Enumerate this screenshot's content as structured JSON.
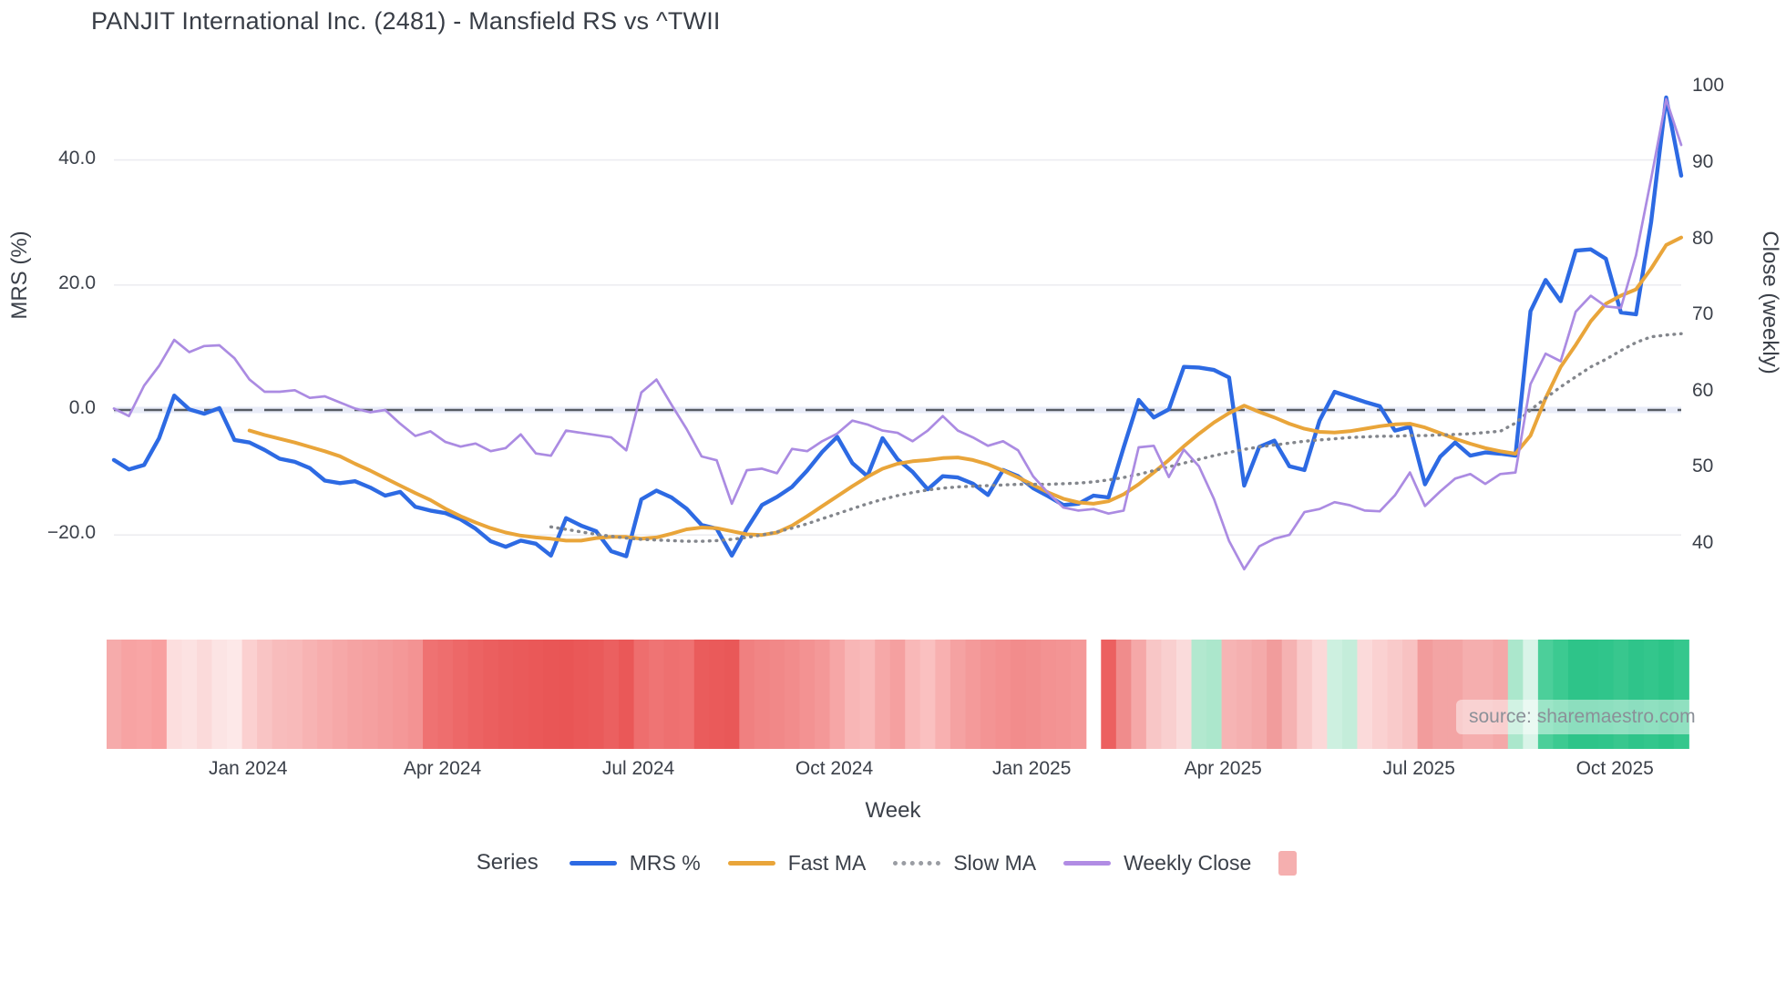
{
  "page": {
    "title": "PANJIT International Inc. (2481) - Mansfield RS vs ^TWII",
    "source_note": "source: sharemaestro.com"
  },
  "axes": {
    "x_title": "Week",
    "left_title": "MRS (%)",
    "right_title": "Close (weekly)",
    "left_ticks": [
      {
        "value": 40,
        "label": "40.0"
      },
      {
        "value": 20,
        "label": "20.0"
      },
      {
        "value": 0,
        "label": "0.0"
      },
      {
        "value": -20,
        "label": "−20.0"
      }
    ],
    "right_ticks": [
      {
        "value": 100,
        "label": "100"
      },
      {
        "value": 90,
        "label": "90"
      },
      {
        "value": 80,
        "label": "80"
      },
      {
        "value": 70,
        "label": "70"
      },
      {
        "value": 60,
        "label": "60"
      },
      {
        "value": 50,
        "label": "50"
      },
      {
        "value": 40,
        "label": "40"
      }
    ],
    "x_ticks": [
      {
        "week": 8.9,
        "label": "Jan 2024"
      },
      {
        "week": 21.8,
        "label": "Apr 2024"
      },
      {
        "week": 34.8,
        "label": "Jul 2024"
      },
      {
        "week": 47.8,
        "label": "Oct 2024"
      },
      {
        "week": 60.9,
        "label": "Jan 2025"
      },
      {
        "week": 73.6,
        "label": "Apr 2025"
      },
      {
        "week": 86.6,
        "label": "Jul 2025"
      },
      {
        "week": 99.6,
        "label": "Oct 2025"
      }
    ]
  },
  "legend": {
    "title": "Series",
    "items": [
      {
        "label": "MRS %",
        "color": "#2d6ae3",
        "swatch": "line"
      },
      {
        "label": "Fast MA",
        "color": "#e9a53a",
        "swatch": "line"
      },
      {
        "label": "Slow MA",
        "color": "#9a9da3",
        "swatch": "dotted"
      },
      {
        "label": "Weekly Close",
        "color": "#b18ce4",
        "swatch": "line"
      },
      {
        "label": "",
        "color": "#f5afaf",
        "swatch": "square"
      }
    ]
  },
  "chart_data": {
    "type": "line",
    "title": "PANJIT International Inc. (2481) - Mansfield RS vs ^TWII",
    "xlabel": "Week",
    "ylabel_left": "MRS (%)",
    "ylabel_right": "Close (weekly)",
    "x_unit": "weekly index, ~Nov 2023 to Nov 2025",
    "n_points": 105,
    "ylim_left": [
      -31,
      57
    ],
    "ylim_right": [
      32,
      104
    ],
    "grid": "horizontal, at left-axis ticks",
    "legend_position": "bottom",
    "zero_line": {
      "axis": "left",
      "value": 0,
      "style": "dashed"
    },
    "series": [
      {
        "name": "MRS %",
        "axis": "left",
        "color": "#2d6ae3",
        "style": "solid",
        "width": 4.4,
        "values": [
          -8.0,
          -9.5,
          -8.8,
          -4.5,
          2.3,
          0.1,
          -0.6,
          0.3,
          -4.8,
          -5.2,
          -6.4,
          -7.8,
          -8.3,
          -9.3,
          -11.3,
          -11.7,
          -11.4,
          -12.4,
          -13.7,
          -13.1,
          -15.5,
          -16.1,
          -16.5,
          -17.5,
          -19.0,
          -21.0,
          -21.9,
          -20.9,
          -21.4,
          -23.3,
          -17.3,
          -18.5,
          -19.4,
          -22.6,
          -23.4,
          -14.3,
          -12.9,
          -14.0,
          -15.8,
          -18.4,
          -19.0,
          -23.3,
          -19.0,
          -15.2,
          -13.9,
          -12.3,
          -9.7,
          -6.7,
          -4.3,
          -8.5,
          -10.6,
          -4.5,
          -7.9,
          -9.9,
          -12.7,
          -10.6,
          -10.8,
          -11.8,
          -13.6,
          -9.6,
          -10.6,
          -12.5,
          -13.8,
          -15.2,
          -15.0,
          -13.7,
          -14.0,
          -6.0,
          1.6,
          -1.2,
          0.1,
          6.9,
          6.8,
          6.4,
          5.2,
          -12.1,
          -5.9,
          -4.9,
          -9.0,
          -9.6,
          -1.7,
          2.9,
          2.1,
          1.3,
          0.6,
          -3.3,
          -2.7,
          -11.9,
          -7.5,
          -5.2,
          -7.3,
          -6.8,
          -7.0,
          -7.3,
          15.8,
          20.8,
          17.4,
          25.5,
          25.7,
          24.2,
          15.6,
          15.3,
          30.0,
          50.0,
          37.5
        ]
      },
      {
        "name": "Fast MA",
        "axis": "left",
        "color": "#e9a53a",
        "style": "solid",
        "width": 4,
        "values": [
          null,
          null,
          null,
          null,
          null,
          null,
          null,
          null,
          null,
          -3.3,
          -4.0,
          -4.6,
          -5.2,
          -5.9,
          -6.6,
          -7.4,
          -8.6,
          -9.7,
          -10.9,
          -12.1,
          -13.3,
          -14.4,
          -15.8,
          -17.0,
          -18.0,
          -18.9,
          -19.6,
          -20.1,
          -20.4,
          -20.6,
          -20.9,
          -20.9,
          -20.5,
          -20.3,
          -20.3,
          -20.6,
          -20.4,
          -19.8,
          -19.1,
          -18.8,
          -18.9,
          -19.4,
          -19.9,
          -20.0,
          -19.6,
          -18.5,
          -17.0,
          -15.4,
          -13.8,
          -12.2,
          -10.7,
          -9.4,
          -8.6,
          -8.2,
          -8.0,
          -7.7,
          -7.6,
          -8.0,
          -8.7,
          -9.7,
          -10.8,
          -12.0,
          -13.2,
          -14.2,
          -14.8,
          -15.0,
          -14.6,
          -13.5,
          -11.9,
          -10.0,
          -8.0,
          -5.8,
          -3.8,
          -2.0,
          -0.5,
          0.7,
          -0.3,
          -1.2,
          -2.2,
          -3.0,
          -3.5,
          -3.6,
          -3.4,
          -3.0,
          -2.6,
          -2.3,
          -2.2,
          -2.8,
          -3.7,
          -4.6,
          -5.4,
          -6.1,
          -6.6,
          -7.0,
          -4.1,
          1.9,
          6.9,
          10.4,
          14.2,
          17.0,
          18.3,
          19.3,
          22.6,
          26.4,
          27.6
        ]
      },
      {
        "name": "Slow MA",
        "axis": "left",
        "color": "#83868c",
        "style": "dotted",
        "width": 3.4,
        "values": [
          null,
          null,
          null,
          null,
          null,
          null,
          null,
          null,
          null,
          null,
          null,
          null,
          null,
          null,
          null,
          null,
          null,
          null,
          null,
          null,
          null,
          null,
          null,
          null,
          null,
          null,
          null,
          null,
          null,
          -18.7,
          -19.1,
          -19.5,
          -19.9,
          -20.2,
          -20.5,
          -20.7,
          -20.8,
          -20.9,
          -21.0,
          -21.0,
          -20.9,
          -20.7,
          -20.4,
          -20.0,
          -19.5,
          -18.9,
          -18.2,
          -17.4,
          -16.6,
          -15.8,
          -15.0,
          -14.3,
          -13.7,
          -13.2,
          -12.8,
          -12.5,
          -12.3,
          -12.2,
          -12.1,
          -12.0,
          -11.9,
          -11.9,
          -11.9,
          -11.8,
          -11.7,
          -11.5,
          -11.2,
          -10.8,
          -10.3,
          -9.7,
          -9.1,
          -8.5,
          -7.9,
          -7.3,
          -6.8,
          -6.3,
          -5.9,
          -5.6,
          -5.3,
          -5.0,
          -4.8,
          -4.6,
          -4.4,
          -4.3,
          -4.2,
          -4.2,
          -4.1,
          -4.1,
          -4.0,
          -3.9,
          -3.8,
          -3.6,
          -3.4,
          -2.1,
          0.0,
          1.9,
          3.7,
          5.3,
          6.9,
          8.1,
          9.5,
          10.8,
          11.7,
          12.0,
          12.2
        ]
      },
      {
        "name": "Weekly Close",
        "axis": "right",
        "color": "#ab8be2",
        "style": "solid",
        "width": 2.7,
        "values": [
          57.9,
          56.9,
          60.9,
          63.5,
          66.9,
          65.3,
          66.1,
          66.2,
          64.5,
          61.7,
          60.1,
          60.1,
          60.3,
          59.3,
          59.5,
          58.7,
          57.9,
          57.4,
          57.7,
          55.9,
          54.3,
          54.9,
          53.5,
          52.9,
          53.3,
          52.3,
          52.7,
          54.5,
          52.0,
          51.7,
          55.0,
          54.7,
          54.4,
          54.1,
          52.4,
          60.0,
          61.7,
          58.4,
          55.2,
          51.6,
          51.1,
          45.4,
          49.8,
          50.0,
          49.4,
          52.6,
          52.3,
          53.6,
          54.6,
          56.3,
          55.8,
          55.0,
          54.7,
          53.6,
          55.0,
          56.9,
          55.0,
          54.1,
          53.0,
          53.6,
          52.4,
          49.0,
          46.8,
          44.9,
          44.5,
          44.7,
          44.1,
          44.5,
          52.8,
          53.0,
          48.9,
          52.5,
          50.3,
          46.0,
          40.5,
          36.8,
          39.8,
          40.8,
          41.3,
          44.3,
          44.7,
          45.6,
          45.2,
          44.5,
          44.4,
          46.5,
          49.5,
          45.1,
          47.0,
          48.7,
          49.3,
          48.0,
          49.3,
          49.5,
          61.1,
          65.1,
          64.1,
          70.6,
          72.7,
          71.3,
          71.1,
          78.0,
          88.0,
          98.5,
          92.5
        ]
      }
    ],
    "heatmap_strip": {
      "description": "weekly strength heatmap below chart (red = weak, green = strong), one cell per week, gap at week 65",
      "gap_week": 65,
      "cell_colors": [
        "#f6abab",
        "#f7a3a3",
        "#f8a5a5",
        "#f8a0a0",
        "#fcdede",
        "#fce2e2",
        "#fbdada",
        "#fce4e4",
        "#fde8e8",
        "#fbd0d0",
        "#f9c4c4",
        "#f8bcbc",
        "#f8baba",
        "#f7b3b3",
        "#f7adad",
        "#f6a8a8",
        "#f5a3a3",
        "#f5a0a0",
        "#f49c9c",
        "#f49898",
        "#f39393",
        "#ef7272",
        "#ee6e6e",
        "#ed6868",
        "#ec6363",
        "#eb5f5f",
        "#ea5c5c",
        "#ea5a5a",
        "#ea5858",
        "#e95656",
        "#e95555",
        "#ea5858",
        "#ea5a5a",
        "#eb6060",
        "#ea5858",
        "#ee6e6e",
        "#ef7474",
        "#ee7070",
        "#ef7272",
        "#ea5c5c",
        "#ea5a5a",
        "#e95858",
        "#f08080",
        "#f18585",
        "#f18888",
        "#f28c8c",
        "#f39292",
        "#f49898",
        "#f6a6a6",
        "#f8b6b6",
        "#f9baba",
        "#f6a8a8",
        "#f5a0a0",
        "#f9b8b8",
        "#fac0c0",
        "#f8b0b0",
        "#f5a2a2",
        "#f49a9a",
        "#f39494",
        "#f39090",
        "#f28c8c",
        "#f28e8e",
        "#f39292",
        "#f39494",
        "#f49898",
        null,
        "#ec6060",
        "#f08c8c",
        "#f5a8a8",
        "#f8c6c6",
        "#f9cfcf",
        "#fadbdb",
        "#b2e8cf",
        "#ace7cc",
        "#f6b4b4",
        "#f5b0b0",
        "#f4aaaa",
        "#f19c9c",
        "#f5b2b2",
        "#f9caca",
        "#fbd8d8",
        "#cdf0e0",
        "#c4edda",
        "#fbdada",
        "#fad1d1",
        "#f9caca",
        "#f8c2c2",
        "#f29c9c",
        "#f3a4a4",
        "#f3a4a4",
        "#f5aeae",
        "#f5aeae",
        "#f4a8a8",
        "#abe7cc",
        "#d9f4e8",
        "#4ccf9a",
        "#3cca91",
        "#2ec489",
        "#2ec489",
        "#30c58b",
        "#38c78e",
        "#2fc48a",
        "#33c68c",
        "#2dc488",
        "#35c78d"
      ]
    },
    "style_colors": {
      "grid": "#ededf1",
      "zero_band": "#e9ecf8",
      "zero_dash": "#565b63",
      "text": "#3b4049",
      "source_text": "#8b9098"
    }
  }
}
